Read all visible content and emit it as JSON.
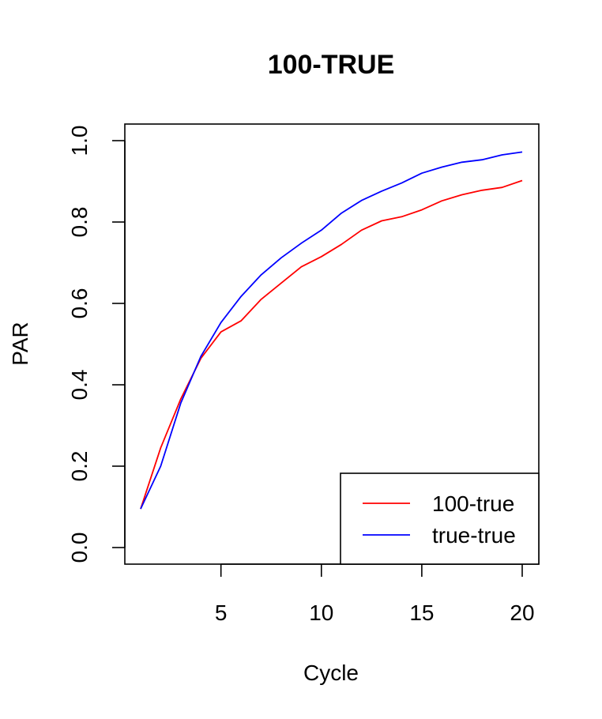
{
  "chart_data": {
    "type": "line",
    "title": "100-TRUE",
    "xlabel": "Cycle",
    "ylabel": "PAR",
    "xlim": [
      1,
      20
    ],
    "ylim": [
      0.0,
      1.0
    ],
    "x_ticks": [
      5,
      10,
      15,
      20
    ],
    "y_ticks": [
      "0.0",
      "0.2",
      "0.4",
      "0.6",
      "0.8",
      "1.0"
    ],
    "grid": false,
    "legend_position": "bottom-right",
    "x": [
      1,
      2,
      3,
      4,
      5,
      6,
      7,
      8,
      9,
      10,
      11,
      12,
      13,
      14,
      15,
      16,
      17,
      18,
      19,
      20
    ],
    "series": [
      {
        "name": "100-true",
        "color": "#ff0000",
        "values": [
          0.095,
          0.245,
          0.365,
          0.465,
          0.53,
          0.557,
          0.61,
          0.65,
          0.69,
          0.715,
          0.745,
          0.78,
          0.803,
          0.813,
          0.83,
          0.852,
          0.867,
          0.878,
          0.885,
          0.902
        ]
      },
      {
        "name": "true-true",
        "color": "#0000ff",
        "values": [
          0.095,
          0.2,
          0.355,
          0.47,
          0.553,
          0.617,
          0.67,
          0.712,
          0.748,
          0.78,
          0.822,
          0.853,
          0.876,
          0.896,
          0.92,
          0.935,
          0.947,
          0.953,
          0.965,
          0.972
        ]
      }
    ]
  }
}
